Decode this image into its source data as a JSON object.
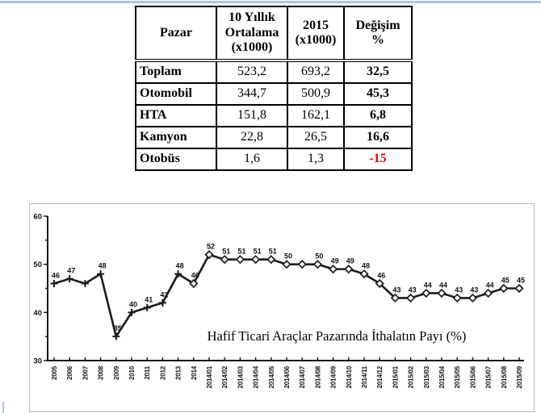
{
  "page": {
    "accent_rule_color": "#aac4e6",
    "background": "#ffffff"
  },
  "table": {
    "headers": [
      "Pazar",
      "10 Yıllık\nOrtalama\n(x1000)",
      "2015\n(x1000)",
      "Değişim\n%"
    ],
    "rows": [
      {
        "label": "Toplam",
        "avg": "523,2",
        "y2015": "693,2",
        "change": "32,5",
        "change_color": "#000000"
      },
      {
        "label": "Otomobil",
        "avg": "344,7",
        "y2015": "500,9",
        "change": "45,3",
        "change_color": "#000000"
      },
      {
        "label": "HTA",
        "avg": "151,8",
        "y2015": "162,1",
        "change": "6,8",
        "change_color": "#000000"
      },
      {
        "label": "Kamyon",
        "avg": "22,8",
        "y2015": "26,5",
        "change": "16,6",
        "change_color": "#000000"
      },
      {
        "label": "Otobüs",
        "avg": "1,6",
        "y2015": "1,3",
        "change": "-15",
        "change_color": "#ee0000"
      }
    ]
  },
  "chart_data": {
    "type": "line",
    "title": "Hafif Ticari Araçlar Pazarında İthalatın Payı (%)",
    "x": [
      "2005",
      "2006",
      "2007",
      "2008",
      "2009",
      "2010",
      "2011",
      "2012",
      "2013",
      "2014",
      "2014/01",
      "2014/02",
      "2014/03",
      "2014/04",
      "2014/05",
      "2014/06",
      "2014/07",
      "2014/08",
      "2014/09",
      "2014/10",
      "2014/11",
      "2014/12",
      "2015/01",
      "2015/02",
      "2015/03",
      "2015/04",
      "2015/05",
      "2015/06",
      "2015/07",
      "2015/08",
      "2015/09"
    ],
    "values": [
      46,
      47,
      46,
      48,
      35,
      40,
      41,
      42,
      48,
      46,
      52,
      51,
      51,
      51,
      51,
      50,
      50,
      50,
      49,
      49,
      48,
      46,
      43,
      43,
      44,
      44,
      43,
      43,
      44,
      45,
      45
    ],
    "point_labels": [
      "46",
      "47",
      "",
      "48",
      "35",
      "40",
      "41",
      "42",
      "48",
      "46",
      "52",
      "51",
      "51",
      "51",
      "51",
      "50",
      "",
      "50",
      "49",
      "49",
      "48",
      "46",
      "43",
      "43",
      "44",
      "44",
      "43",
      "43",
      "44",
      "45",
      "45"
    ],
    "marker_plus_count": 9,
    "ylim": [
      30,
      60
    ],
    "yticks": [
      30,
      40,
      50,
      60
    ],
    "yticks_minor": [
      35,
      45,
      55
    ],
    "xlabel": "",
    "ylabel": "",
    "legend": "none",
    "grid": "off",
    "line_color": "#1c1c1c"
  }
}
